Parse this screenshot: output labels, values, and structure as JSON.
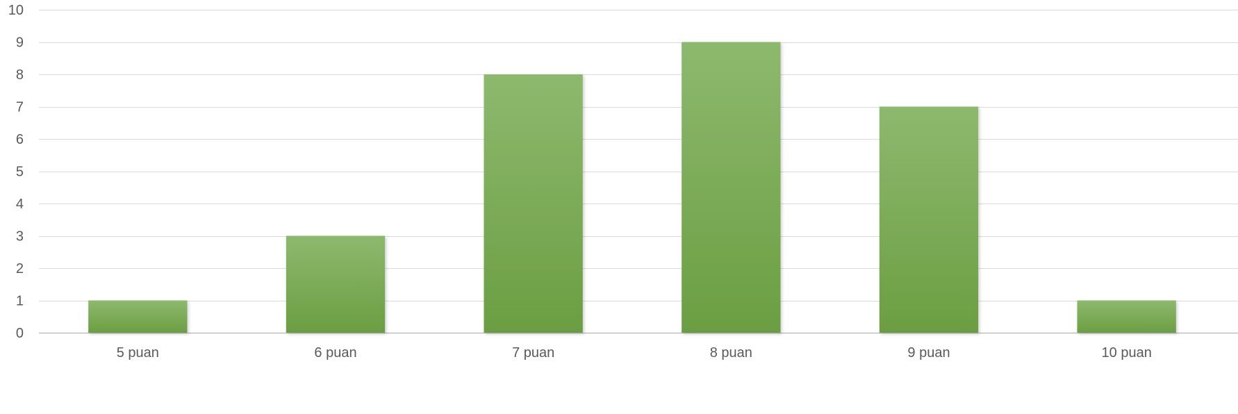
{
  "chart_data": {
    "type": "bar",
    "categories": [
      "5 puan",
      "6 puan",
      "7 puan",
      "8 puan",
      "9 puan",
      "10 puan"
    ],
    "values": [
      1,
      3,
      8,
      9,
      7,
      1
    ],
    "title": "",
    "xlabel": "",
    "ylabel": "",
    "ylim": [
      0,
      10
    ],
    "yticks": [
      0,
      1,
      2,
      3,
      4,
      5,
      6,
      7,
      8,
      9,
      10
    ],
    "grid": true,
    "legend": "none",
    "colors": {
      "bar_top": "#8db96e",
      "bar_bottom": "#6b9e42",
      "grid": "#d9d9d9",
      "axis": "#bfbfbf",
      "text": "#595959"
    }
  }
}
